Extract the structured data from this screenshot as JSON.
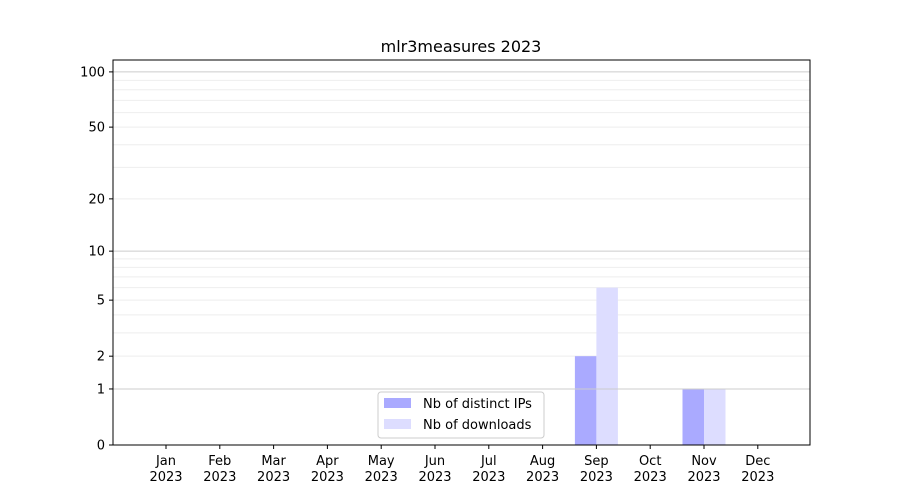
{
  "chart_data": {
    "type": "bar",
    "title": "mlr3measures 2023",
    "xlabel": "",
    "ylabel": "",
    "categories": [
      "Jan\n2023",
      "Feb\n2023",
      "Mar\n2023",
      "Apr\n2023",
      "May\n2023",
      "Jun\n2023",
      "Jul\n2023",
      "Aug\n2023",
      "Sep\n2023",
      "Oct\n2023",
      "Nov\n2023",
      "Dec\n2023"
    ],
    "series": [
      {
        "name": "Nb of distinct IPs",
        "color": "#aaaaff",
        "values": [
          0,
          0,
          0,
          0,
          0,
          0,
          0,
          0,
          2,
          0,
          1,
          0
        ]
      },
      {
        "name": "Nb of downloads",
        "color": "#ddddff",
        "values": [
          0,
          0,
          0,
          0,
          0,
          0,
          0,
          0,
          6,
          0,
          1,
          0
        ]
      }
    ],
    "yscale": "log(1+y)",
    "yticks": [
      0,
      1,
      2,
      5,
      10,
      20,
      50,
      100
    ],
    "ylim": [
      0,
      116
    ],
    "grid": true,
    "legend": "lower-center"
  }
}
